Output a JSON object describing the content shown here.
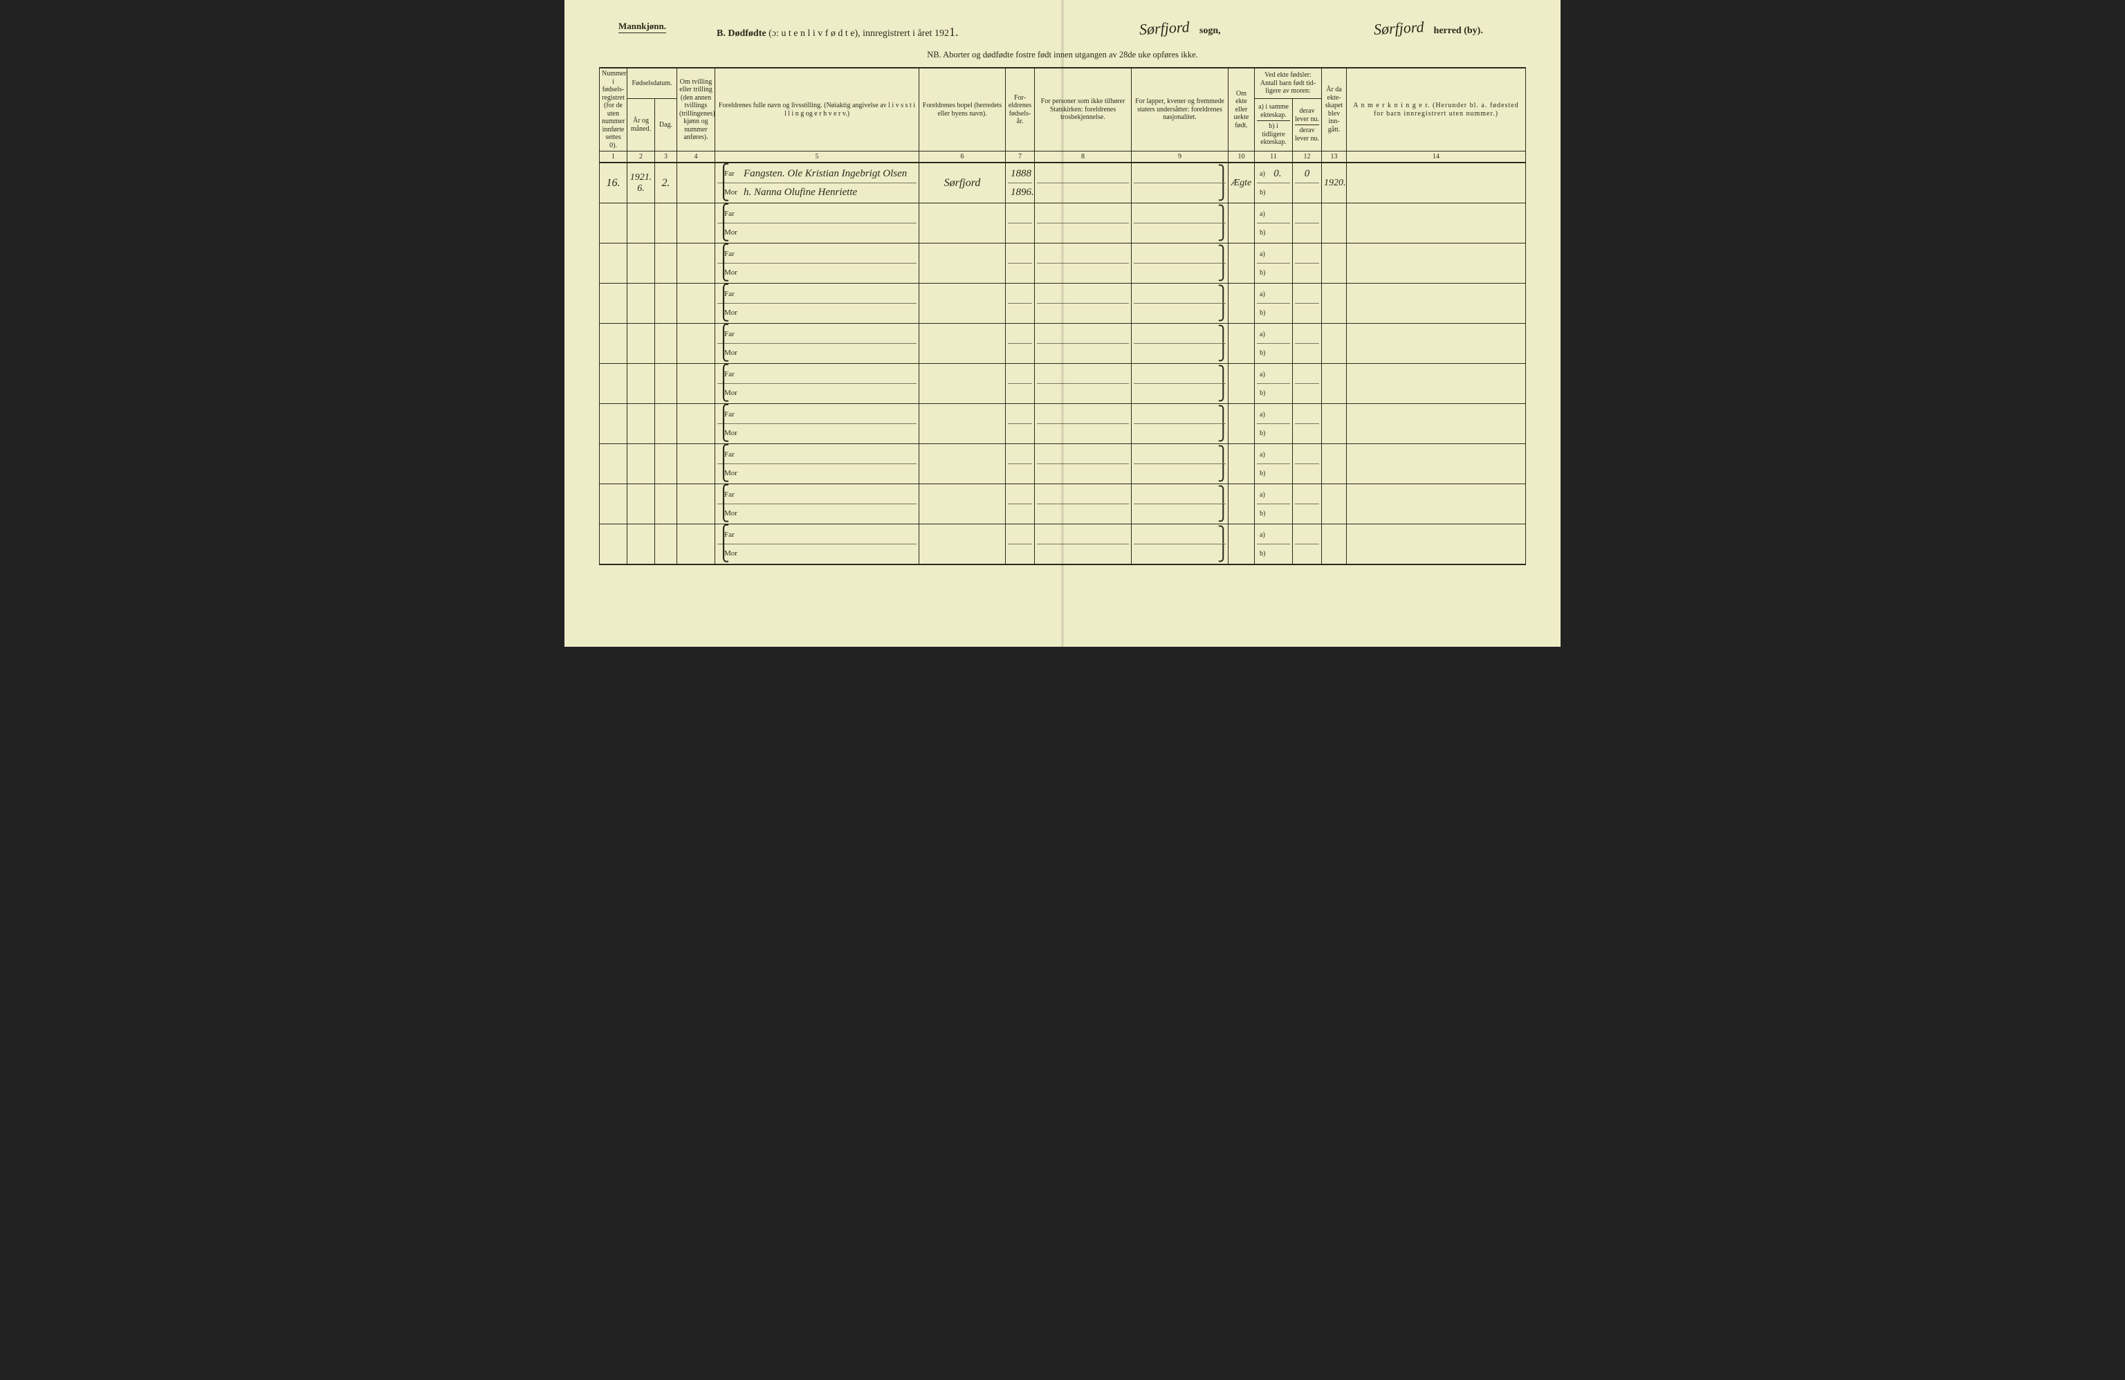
{
  "header": {
    "gender": "Mannkjønn.",
    "title_prefix": "B.",
    "title_main": "Dødfødte",
    "title_paren": "(ɔ: u t e n  l i v  f ø d t e),",
    "title_mid": "innregistrert i året 192",
    "year_suffix": "1.",
    "sogn_value": "Sørfjord",
    "sogn_label": "sogn,",
    "herred_value": "Sørfjord",
    "herred_label": "herred (by).",
    "nb": "NB.  Aborter og dødfødte fostre født innen utgangen av 28de uke opføres ikke."
  },
  "columns": {
    "c1": "Nummer i fødsels-registret (for de uten nummer innførte settes 0).",
    "c2_group": "Fødselsdatum.",
    "c2a": "År og måned.",
    "c2b": "Dag.",
    "c4": "Om tvilling eller trilling (den annen tvillings (trillingenes) kjønn og nummer anføres).",
    "c5": "Foreldrenes fulle navn og livsstilling. (Nøiaktig angivelse av l i v s s t i l l i n g og e r h v e r v.)",
    "c6": "Foreldrenes bopel (herredets eller byens navn).",
    "c7": "For-eldrenes fødsels-år.",
    "c8": "For personer som ikke tilhører Statskirken: foreldrenes trosbekjennelse.",
    "c9": "For lapper, kvener og fremmede staters undersåtter: foreldrenes nasjonalitet.",
    "c10": "Om ekte eller uekte født.",
    "c11_top": "Ved ekte fødsler: Antall barn født tid-ligere av moren:",
    "c11a": "a) i samme ekteskap.",
    "c11b": "b) i tidligere ekteskap.",
    "c12a": "derav lever nu.",
    "c12b": "derav lever nu.",
    "c13": "År da ekte-skapet blev inn-gått.",
    "c14": "A n m e r k n i n g e r. (Herunder bl. a. fødested for barn innregistrert uten nummer.)"
  },
  "colnums": [
    "1",
    "2",
    "3",
    "4",
    "5",
    "6",
    "7",
    "8",
    "9",
    "10",
    "11",
    "12",
    "13",
    "14"
  ],
  "row_labels": {
    "far": "Far",
    "mor": "Mor",
    "a": "a)",
    "b": "b)"
  },
  "entries": [
    {
      "num": "16.",
      "year_month": "1921. 6.",
      "day": "2.",
      "twin": "",
      "far": "Fangsten. Ole Kristian Ingebrigt Olsen",
      "mor": "h. Nanna Olufine Henriette",
      "bopel": "Sørfjord",
      "far_year": "1888",
      "mor_year": "1896.",
      "c8": "",
      "c9": "",
      "ekte": "Ægte",
      "a_same": "0.",
      "b_prev": "",
      "a_live": "0",
      "b_live": "",
      "marriage_year": "1920.",
      "remarks": ""
    },
    {
      "num": "",
      "year_month": "",
      "day": "",
      "twin": "",
      "far": "",
      "mor": "",
      "bopel": "",
      "far_year": "",
      "mor_year": "",
      "c8": "",
      "c9": "",
      "ekte": "",
      "a_same": "",
      "b_prev": "",
      "a_live": "",
      "b_live": "",
      "marriage_year": "",
      "remarks": ""
    },
    {
      "num": "",
      "year_month": "",
      "day": "",
      "twin": "",
      "far": "",
      "mor": "",
      "bopel": "",
      "far_year": "",
      "mor_year": "",
      "c8": "",
      "c9": "",
      "ekte": "",
      "a_same": "",
      "b_prev": "",
      "a_live": "",
      "b_live": "",
      "marriage_year": "",
      "remarks": ""
    },
    {
      "num": "",
      "year_month": "",
      "day": "",
      "twin": "",
      "far": "",
      "mor": "",
      "bopel": "",
      "far_year": "",
      "mor_year": "",
      "c8": "",
      "c9": "",
      "ekte": "",
      "a_same": "",
      "b_prev": "",
      "a_live": "",
      "b_live": "",
      "marriage_year": "",
      "remarks": ""
    },
    {
      "num": "",
      "year_month": "",
      "day": "",
      "twin": "",
      "far": "",
      "mor": "",
      "bopel": "",
      "far_year": "",
      "mor_year": "",
      "c8": "",
      "c9": "",
      "ekte": "",
      "a_same": "",
      "b_prev": "",
      "a_live": "",
      "b_live": "",
      "marriage_year": "",
      "remarks": ""
    },
    {
      "num": "",
      "year_month": "",
      "day": "",
      "twin": "",
      "far": "",
      "mor": "",
      "bopel": "",
      "far_year": "",
      "mor_year": "",
      "c8": "",
      "c9": "",
      "ekte": "",
      "a_same": "",
      "b_prev": "",
      "a_live": "",
      "b_live": "",
      "marriage_year": "",
      "remarks": ""
    },
    {
      "num": "",
      "year_month": "",
      "day": "",
      "twin": "",
      "far": "",
      "mor": "",
      "bopel": "",
      "far_year": "",
      "mor_year": "",
      "c8": "",
      "c9": "",
      "ekte": "",
      "a_same": "",
      "b_prev": "",
      "a_live": "",
      "b_live": "",
      "marriage_year": "",
      "remarks": ""
    },
    {
      "num": "",
      "year_month": "",
      "day": "",
      "twin": "",
      "far": "",
      "mor": "",
      "bopel": "",
      "far_year": "",
      "mor_year": "",
      "c8": "",
      "c9": "",
      "ekte": "",
      "a_same": "",
      "b_prev": "",
      "a_live": "",
      "b_live": "",
      "marriage_year": "",
      "remarks": ""
    },
    {
      "num": "",
      "year_month": "",
      "day": "",
      "twin": "",
      "far": "",
      "mor": "",
      "bopel": "",
      "far_year": "",
      "mor_year": "",
      "c8": "",
      "c9": "",
      "ekte": "",
      "a_same": "",
      "b_prev": "",
      "a_live": "",
      "b_live": "",
      "marriage_year": "",
      "remarks": ""
    },
    {
      "num": "",
      "year_month": "",
      "day": "",
      "twin": "",
      "far": "",
      "mor": "",
      "bopel": "",
      "far_year": "",
      "mor_year": "",
      "c8": "",
      "c9": "",
      "ekte": "",
      "a_same": "",
      "b_prev": "",
      "a_live": "",
      "b_live": "",
      "marriage_year": "",
      "remarks": ""
    }
  ]
}
